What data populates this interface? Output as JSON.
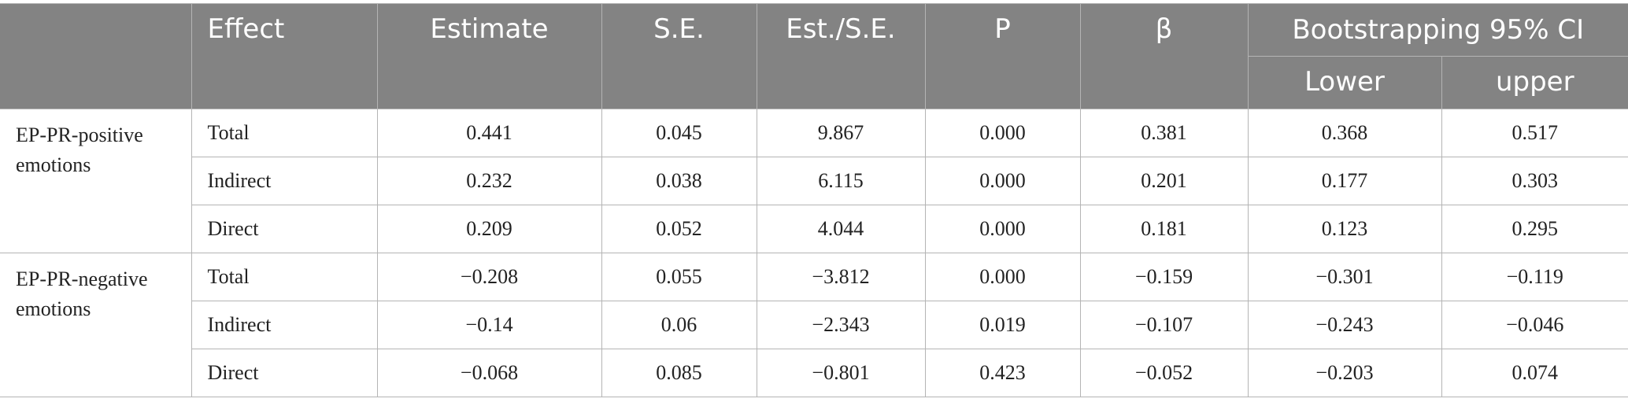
{
  "headers": {
    "group": "",
    "effect": "Effect",
    "estimate": "Estimate",
    "se": "S.E.",
    "est_se": "Est./S.E.",
    "p": "P",
    "beta": "β",
    "ci": "Bootstrapping 95% CI",
    "lower": "Lower",
    "upper": "upper"
  },
  "groups": [
    {
      "label": "EP-PR-positive emotions",
      "rows": [
        {
          "effect": "Total",
          "estimate": "0.441",
          "se": "0.045",
          "est_se": "9.867",
          "p": "0.000",
          "beta": "0.381",
          "lower": "0.368",
          "upper": "0.517"
        },
        {
          "effect": "Indirect",
          "estimate": "0.232",
          "se": "0.038",
          "est_se": "6.115",
          "p": "0.000",
          "beta": "0.201",
          "lower": "0.177",
          "upper": "0.303"
        },
        {
          "effect": "Direct",
          "estimate": "0.209",
          "se": "0.052",
          "est_se": "4.044",
          "p": "0.000",
          "beta": "0.181",
          "lower": "0.123",
          "upper": "0.295"
        }
      ]
    },
    {
      "label": "EP-PR-negative emotions",
      "rows": [
        {
          "effect": "Total",
          "estimate": "−0.208",
          "se": "0.055",
          "est_se": "−3.812",
          "p": "0.000",
          "beta": "−0.159",
          "lower": "−0.301",
          "upper": "−0.119"
        },
        {
          "effect": "Indirect",
          "estimate": "−0.14",
          "se": "0.06",
          "est_se": "−2.343",
          "p": "0.019",
          "beta": "−0.107",
          "lower": "−0.243",
          "upper": "−0.046"
        },
        {
          "effect": "Direct",
          "estimate": "−0.068",
          "se": "0.085",
          "est_se": "−0.801",
          "p": "0.423",
          "beta": "−0.052",
          "lower": "−0.203",
          "upper": "0.074"
        }
      ]
    }
  ],
  "colors": {
    "header_bg": "#838383",
    "header_text": "#ffffff",
    "grid": "#b4b4b4",
    "body_text": "#222222"
  }
}
